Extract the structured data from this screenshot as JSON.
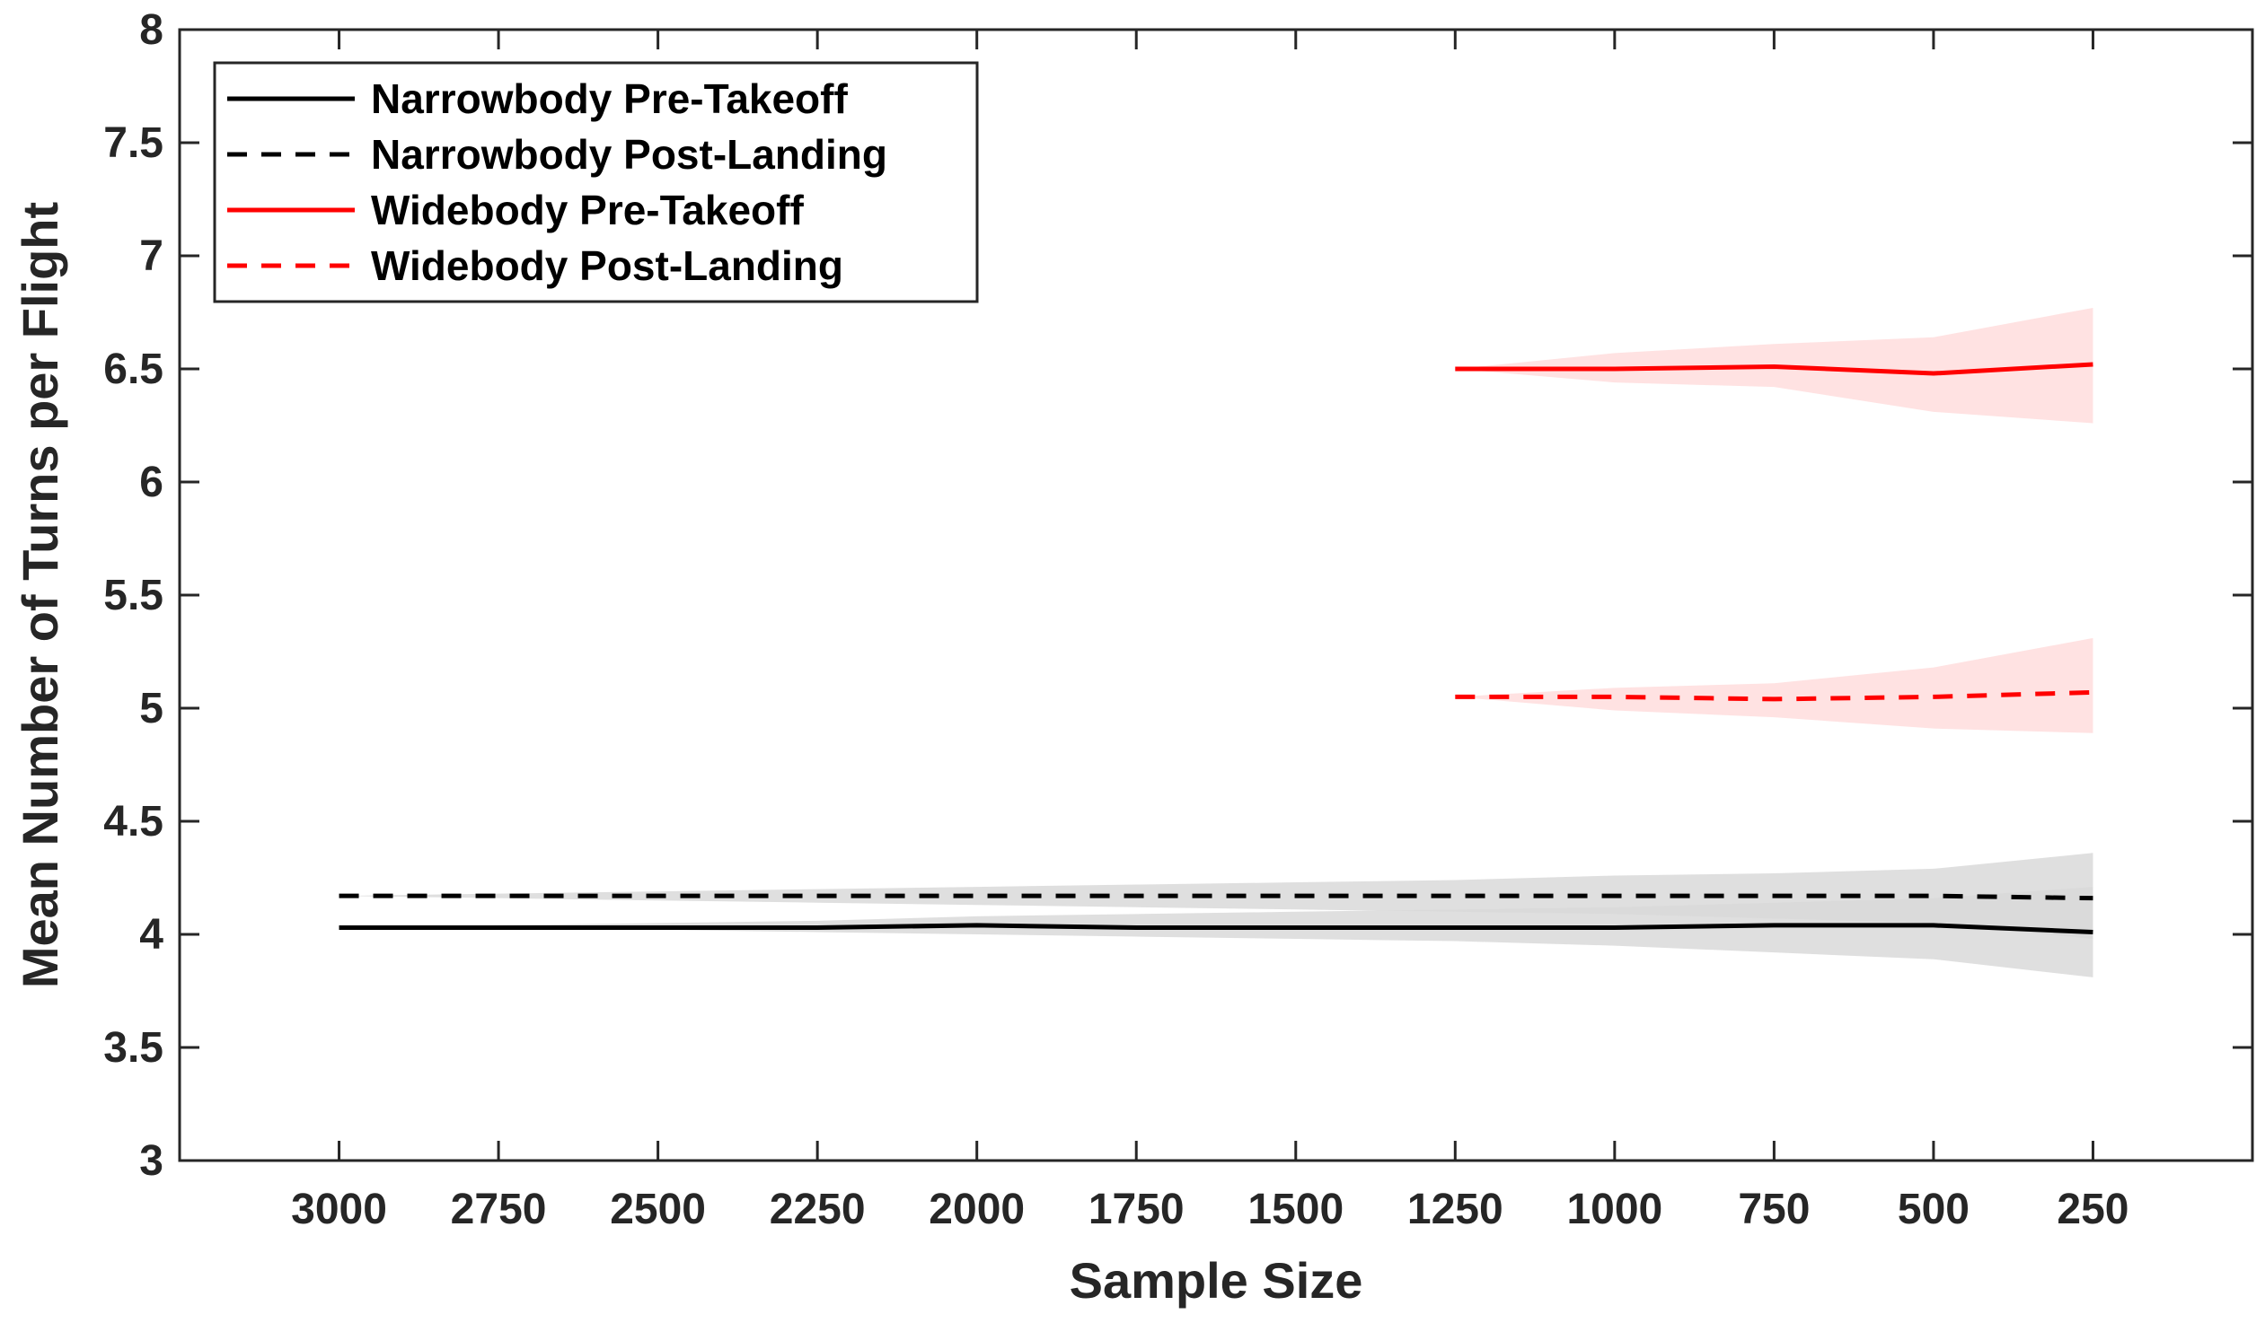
{
  "chart_data": {
    "type": "line",
    "title": "",
    "xlabel": "Sample Size",
    "ylabel": "Mean Number of Turns per Flight",
    "x_reversed": true,
    "xlim": [
      3250,
      0
    ],
    "ylim": [
      3,
      8
    ],
    "x_ticks": [
      3000,
      2750,
      2500,
      2250,
      2000,
      1750,
      1500,
      1250,
      1000,
      750,
      500,
      250
    ],
    "y_ticks": [
      3,
      3.5,
      4,
      4.5,
      5,
      5.5,
      6,
      6.5,
      7,
      7.5,
      8
    ],
    "y_tick_labels": [
      "3",
      "3.5",
      "4",
      "4.5",
      "5",
      "5.5",
      "6",
      "6.5",
      "7",
      "7.5",
      "8"
    ],
    "grid": false,
    "legend_position": "top-left",
    "series": [
      {
        "name": "Narrowbody Pre-Takeoff",
        "color": "#000000",
        "dash": "solid",
        "band_color": "#d9d9d9",
        "x": [
          3000,
          2750,
          2500,
          2250,
          2000,
          1750,
          1500,
          1250,
          1000,
          750,
          500,
          250
        ],
        "y": [
          4.03,
          4.03,
          4.03,
          4.03,
          4.04,
          4.03,
          4.03,
          4.03,
          4.03,
          4.04,
          4.04,
          4.01
        ],
        "lower": [
          4.03,
          4.03,
          4.02,
          4.01,
          4.0,
          3.99,
          3.98,
          3.97,
          3.95,
          3.92,
          3.89,
          3.81
        ],
        "upper": [
          4.03,
          4.04,
          4.05,
          4.06,
          4.08,
          4.09,
          4.1,
          4.11,
          4.12,
          4.14,
          4.16,
          4.21
        ]
      },
      {
        "name": "Narrowbody Post-Landing",
        "color": "#000000",
        "dash": "dashed",
        "band_color": "#d9d9d9",
        "x": [
          3000,
          2750,
          2500,
          2250,
          2000,
          1750,
          1500,
          1250,
          1000,
          750,
          500,
          250
        ],
        "y": [
          4.17,
          4.17,
          4.17,
          4.17,
          4.17,
          4.17,
          4.17,
          4.17,
          4.17,
          4.17,
          4.17,
          4.16
        ],
        "lower": [
          4.17,
          4.16,
          4.15,
          4.14,
          4.13,
          4.12,
          4.11,
          4.1,
          4.09,
          4.07,
          4.05,
          3.98
        ],
        "upper": [
          4.17,
          4.18,
          4.19,
          4.2,
          4.21,
          4.22,
          4.23,
          4.24,
          4.26,
          4.27,
          4.29,
          4.36
        ]
      },
      {
        "name": "Widebody Pre-Takeoff",
        "color": "#ff0000",
        "dash": "solid",
        "band_color": "#ffdddd",
        "x": [
          1250,
          1000,
          750,
          500,
          250
        ],
        "y": [
          6.5,
          6.5,
          6.51,
          6.48,
          6.52
        ],
        "lower": [
          6.5,
          6.44,
          6.42,
          6.31,
          6.26
        ],
        "upper": [
          6.5,
          6.57,
          6.61,
          6.64,
          6.77
        ]
      },
      {
        "name": "Widebody Post-Landing",
        "color": "#ff0000",
        "dash": "dashed",
        "band_color": "#ffdddd",
        "x": [
          1250,
          1000,
          750,
          500,
          250
        ],
        "y": [
          5.05,
          5.05,
          5.04,
          5.05,
          5.07
        ],
        "lower": [
          5.05,
          4.99,
          4.96,
          4.91,
          4.89
        ],
        "upper": [
          5.05,
          5.09,
          5.11,
          5.18,
          5.31
        ]
      }
    ]
  }
}
